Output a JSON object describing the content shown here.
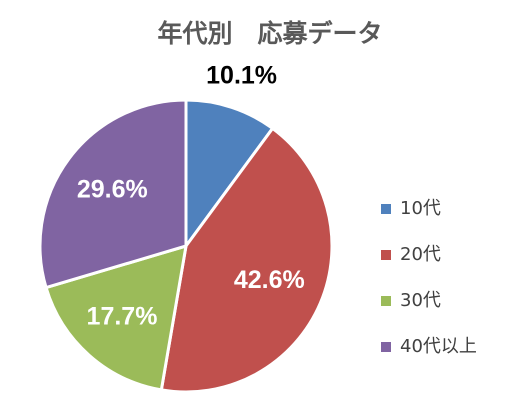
{
  "chart_data": {
    "type": "pie",
    "title": "年代別　応募データ",
    "categories": [
      "10代",
      "20代",
      "30代",
      "40代以上"
    ],
    "values": [
      10.1,
      42.6,
      17.7,
      29.6
    ],
    "data_labels": [
      "10.1%",
      "42.6%",
      "17.7%",
      "29.6%"
    ],
    "colors": [
      "#4F81BD",
      "#C0504D",
      "#9BBB59",
      "#8064A2"
    ],
    "label_colors": [
      "#000000",
      "#FFFFFF",
      "#FFFFFF",
      "#FFFFFF"
    ],
    "legend_position": "right",
    "start": "12 o'clock, clockwise"
  }
}
